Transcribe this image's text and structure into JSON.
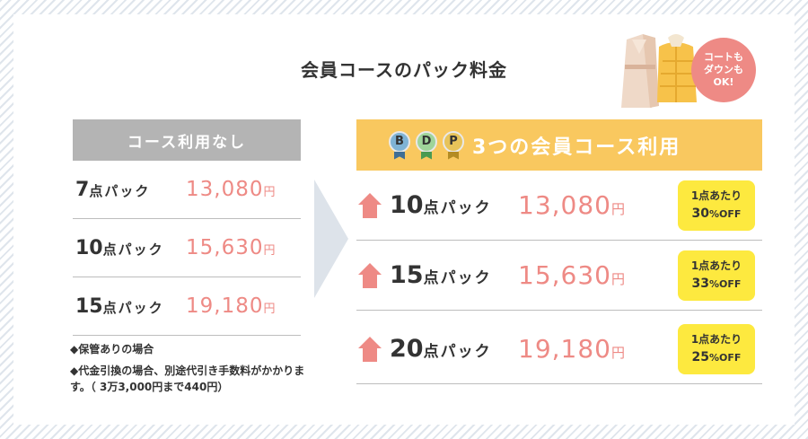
{
  "title": "会員コースのパック料金",
  "badge": {
    "line1": "コートも",
    "line2": "ダウンも",
    "line3": "OK!"
  },
  "left": {
    "header": "コース利用なし",
    "rows": [
      {
        "num": "7",
        "suffix": "点パック",
        "price": "13,080",
        "yen": "円"
      },
      {
        "num": "10",
        "suffix": "点パック",
        "price": "15,630",
        "yen": "円"
      },
      {
        "num": "15",
        "suffix": "点パック",
        "price": "19,180",
        "yen": "円"
      }
    ]
  },
  "notes": [
    "◆保管ありの場合",
    "◆代金引換の場合、別途代引き手数料がかかります。（ 3万3,000円まで440円）"
  ],
  "right": {
    "header": "3つの会員コース利用",
    "medals": [
      {
        "letter": "B",
        "color": "#7fb3d5",
        "ribbon": "#3f6e95"
      },
      {
        "letter": "D",
        "color": "#9fd49a",
        "ribbon": "#4a9a52"
      },
      {
        "letter": "P",
        "color": "#e7c35a",
        "ribbon": "#b38b23"
      }
    ],
    "rows": [
      {
        "num": "10",
        "suffix": "点パック",
        "price": "13,080",
        "yen": "円",
        "per": "1点あたり",
        "pct": "30",
        "off": "%OFF"
      },
      {
        "num": "15",
        "suffix": "点パック",
        "price": "15,630",
        "yen": "円",
        "per": "1点あたり",
        "pct": "33",
        "off": "%OFF"
      },
      {
        "num": "20",
        "suffix": "点パック",
        "price": "19,180",
        "yen": "円",
        "per": "1点あたり",
        "pct": "25",
        "off": "%OFF"
      }
    ]
  },
  "colors": {
    "accent": "#ee8a85",
    "header_yellow": "#f9c85f",
    "off_badge": "#fde93f",
    "gray_header": "#b4b4b4"
  },
  "icons": {
    "up_arrow": "house-up-arrow-icon",
    "coat": "coat-illustration"
  }
}
